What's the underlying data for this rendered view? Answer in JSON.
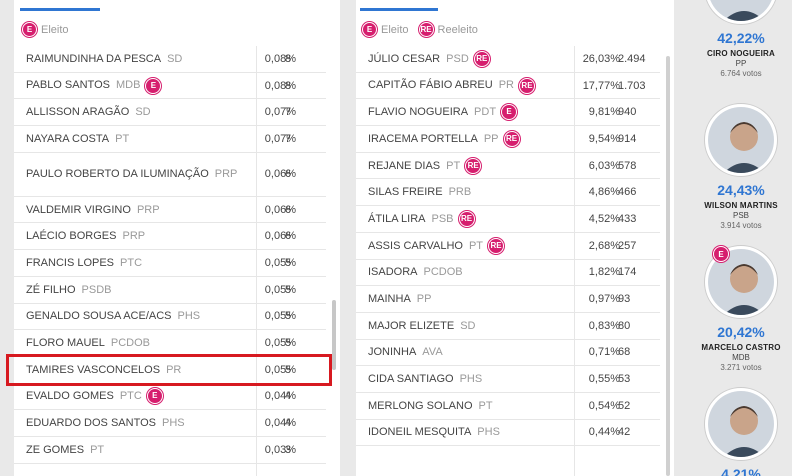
{
  "legend_left": {
    "eleito": "Eleito",
    "eleito_badge": "E"
  },
  "legend_mid": {
    "eleito": "Eleito",
    "eleito_badge": "E",
    "reeleito": "Reeleito",
    "reeleito_badge": "RE"
  },
  "left_rows": [
    {
      "name": "RAIMUNDINHA DA PESCA",
      "party": "SD",
      "pct": "0,08%",
      "votes": "8",
      "badge": ""
    },
    {
      "name": "PABLO SANTOS",
      "party": "MDB",
      "pct": "0,08%",
      "votes": "8",
      "badge": "E"
    },
    {
      "name": "ALLISSON ARAGÃO",
      "party": "SD",
      "pct": "0,07%",
      "votes": "7",
      "badge": ""
    },
    {
      "name": "NAYARA COSTA",
      "party": "PT",
      "pct": "0,07%",
      "votes": "7",
      "badge": ""
    },
    {
      "name": "PAULO ROBERTO DA ILUMINAÇÃO",
      "party": "PRP",
      "pct": "0,06%",
      "votes": "6",
      "badge": ""
    },
    {
      "name": "VALDEMIR VIRGINO",
      "party": "PRP",
      "pct": "0,06%",
      "votes": "6",
      "badge": ""
    },
    {
      "name": "LAÉCIO BORGES",
      "party": "PRP",
      "pct": "0,06%",
      "votes": "6",
      "badge": ""
    },
    {
      "name": "FRANCIS LOPES",
      "party": "PTC",
      "pct": "0,05%",
      "votes": "5",
      "badge": ""
    },
    {
      "name": "ZÉ FILHO",
      "party": "PSDB",
      "pct": "0,05%",
      "votes": "5",
      "badge": ""
    },
    {
      "name": "GENALDO SOUSA ACE/ACS",
      "party": "PHS",
      "pct": "0,05%",
      "votes": "5",
      "badge": ""
    },
    {
      "name": "FLORO MAUEL",
      "party": "PCdoB",
      "pct": "0,05%",
      "votes": "5",
      "badge": ""
    },
    {
      "name": "TAMIRES VASCONCELOS",
      "party": "PR",
      "pct": "0,05%",
      "votes": "5",
      "badge": ""
    },
    {
      "name": "EVALDO GOMES",
      "party": "PTC",
      "pct": "0,04%",
      "votes": "4",
      "badge": "E"
    },
    {
      "name": "EDUARDO DOS SANTOS",
      "party": "PHS",
      "pct": "0,04%",
      "votes": "4",
      "badge": ""
    },
    {
      "name": "ZE GOMES",
      "party": "PT",
      "pct": "0,03%",
      "votes": "3",
      "badge": ""
    }
  ],
  "mid_rows": [
    {
      "name": "JÚLIO CESAR",
      "party": "PSD",
      "pct": "26,03%",
      "votes": "2.494",
      "badge": "RE"
    },
    {
      "name": "CAPITÃO FÁBIO ABREU",
      "party": "PR",
      "pct": "17,77%",
      "votes": "1.703",
      "badge": "RE"
    },
    {
      "name": "FLAVIO NOGUEIRA",
      "party": "PDT",
      "pct": "9,81%",
      "votes": "940",
      "badge": "E"
    },
    {
      "name": "IRACEMA PORTELLA",
      "party": "PP",
      "pct": "9,54%",
      "votes": "914",
      "badge": "RE"
    },
    {
      "name": "REJANE DIAS",
      "party": "PT",
      "pct": "6,03%",
      "votes": "578",
      "badge": "RE"
    },
    {
      "name": "SILAS FREIRE",
      "party": "PRB",
      "pct": "4,86%",
      "votes": "466",
      "badge": ""
    },
    {
      "name": "ÁTILA LIRA",
      "party": "PSB",
      "pct": "4,52%",
      "votes": "433",
      "badge": "RE"
    },
    {
      "name": "ASSIS CARVALHO",
      "party": "PT",
      "pct": "2,68%",
      "votes": "257",
      "badge": "RE"
    },
    {
      "name": "ISADORA",
      "party": "PCdoB",
      "pct": "1,82%",
      "votes": "174",
      "badge": ""
    },
    {
      "name": "MAINHA",
      "party": "PP",
      "pct": "0,97%",
      "votes": "93",
      "badge": ""
    },
    {
      "name": "MAJOR ELIZETE",
      "party": "SD",
      "pct": "0,83%",
      "votes": "80",
      "badge": ""
    },
    {
      "name": "JONINHA",
      "party": "AVA",
      "pct": "0,71%",
      "votes": "68",
      "badge": ""
    },
    {
      "name": "CIDA SANTIAGO",
      "party": "PHS",
      "pct": "0,55%",
      "votes": "53",
      "badge": ""
    },
    {
      "name": "MERLONG SOLANO",
      "party": "PT",
      "pct": "0,54%",
      "votes": "52",
      "badge": ""
    },
    {
      "name": "IDONEIL MESQUITA",
      "party": "PHS",
      "pct": "0,44%",
      "votes": "42",
      "badge": ""
    }
  ],
  "candidates": [
    {
      "pct": "42,22%",
      "name": "CIRO NOGUEIRA",
      "party": "PP",
      "votes": "6.764 votos",
      "eleito": ""
    },
    {
      "pct": "24,43%",
      "name": "WILSON MARTINS",
      "party": "PSB",
      "votes": "3.914 votos",
      "eleito": ""
    },
    {
      "pct": "20,42%",
      "name": "MARCELO CASTRO",
      "party": "MDB",
      "votes": "3.271 votos",
      "eleito": "E"
    },
    {
      "pct": "4,21%",
      "name": "",
      "party": "",
      "votes": "",
      "eleito": ""
    }
  ],
  "colors": {
    "accent_blue": "#2f76d2",
    "badge_pink": "#d61e6e",
    "highlight_red": "#d71920"
  },
  "icons": {
    "avatar": "candidate-photo"
  }
}
